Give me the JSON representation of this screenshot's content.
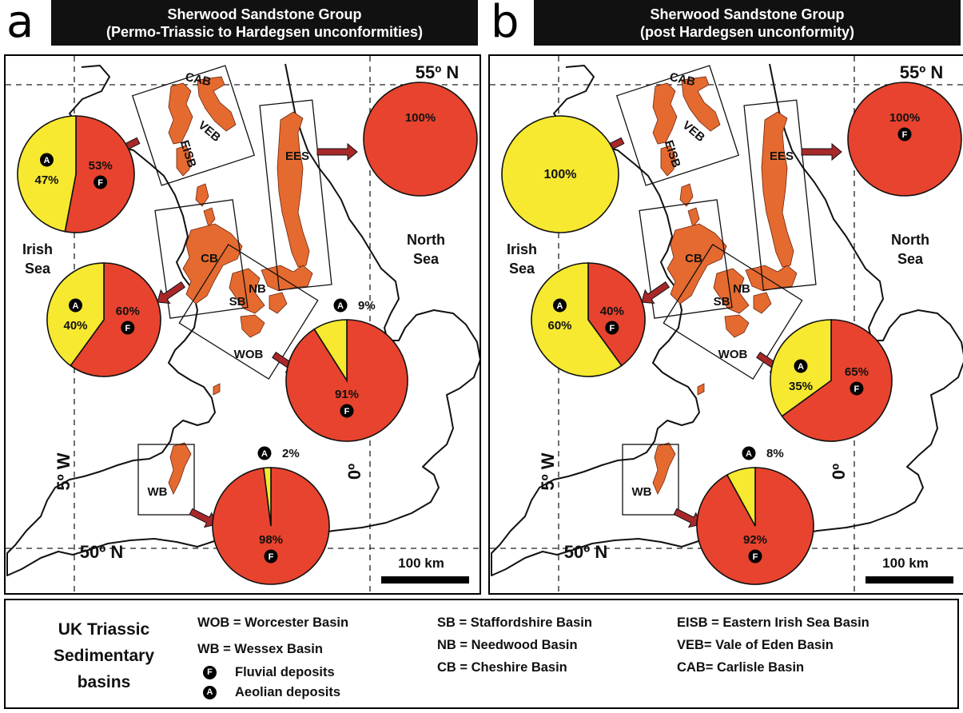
{
  "panels": [
    {
      "letter": "a",
      "header": [
        "Sherwood Sandstone Group",
        "(Permo-Triassic to Hardegsen unconformities)"
      ],
      "pies": [
        {
          "basin": "EISB/VEB/CAB",
          "fluvial": 53,
          "aeolian": 47,
          "fluvial_label": "53%",
          "aeolian_label": "47%"
        },
        {
          "basin": "EES",
          "fluvial": 100,
          "aeolian": 0,
          "fluvial_label": "100%",
          "aeolian_label": ""
        },
        {
          "basin": "CB",
          "fluvial": 60,
          "aeolian": 40,
          "fluvial_label": "60%",
          "aeolian_label": "40%"
        },
        {
          "basin": "WOB",
          "fluvial": 91,
          "aeolian": 9,
          "fluvial_label": "91%",
          "aeolian_label": "9%"
        },
        {
          "basin": "WB",
          "fluvial": 98,
          "aeolian": 2,
          "fluvial_label": "98%",
          "aeolian_label": "2%"
        }
      ]
    },
    {
      "letter": "b",
      "header": [
        "Sherwood Sandstone Group",
        "(post Hardegsen unconformity)"
      ],
      "pies": [
        {
          "basin": "EISB/VEB/CAB",
          "fluvial": 0,
          "aeolian": 100,
          "fluvial_label": "",
          "aeolian_label": "100%"
        },
        {
          "basin": "EES",
          "fluvial": 100,
          "aeolian": 0,
          "fluvial_label": "100%",
          "aeolian_label": ""
        },
        {
          "basin": "CB",
          "fluvial": 40,
          "aeolian": 60,
          "fluvial_label": "40%",
          "aeolian_label": "60%"
        },
        {
          "basin": "WOB",
          "fluvial": 65,
          "aeolian": 35,
          "fluvial_label": "65%",
          "aeolian_label": "35%"
        },
        {
          "basin": "WB",
          "fluvial": 92,
          "aeolian": 8,
          "fluvial_label": "92%",
          "aeolian_label": "8%"
        }
      ]
    }
  ],
  "map_labels": {
    "lat_north": "55º N",
    "lat_south": "50º N",
    "lon_west": "5º W",
    "lon_zero": "0º",
    "irish_sea": [
      "Irish",
      "Sea"
    ],
    "north_sea": [
      "North",
      "Sea"
    ],
    "scale": "100 km"
  },
  "basin_codes": [
    "CAB",
    "VEB",
    "EISB",
    "EES",
    "CB",
    "NB",
    "SB",
    "WOB",
    "WB"
  ],
  "symbols": {
    "fluvial": "F",
    "aeolian": "A"
  },
  "legend": {
    "title": "UK Triassic\nSedimentary\nbasins",
    "col1": [
      "WOB = Worcester Basin",
      "WB = Wessex Basin"
    ],
    "symbol_items": [
      "Fluvial deposits",
      "Aeolian deposits"
    ],
    "col2": [
      "SB = Staffordshire Basin",
      "NB = Needwood Basin",
      "CB = Cheshire Basin"
    ],
    "col3": [
      "EISB = Eastern Irish Sea Basin",
      "VEB= Vale of Eden Basin",
      "CAB= Carlisle Basin"
    ]
  },
  "colors": {
    "fluvial": "#e8432e",
    "aeolian": "#f6e930",
    "basin_fill": "#e56a2f",
    "arrow": "#a8282a"
  }
}
